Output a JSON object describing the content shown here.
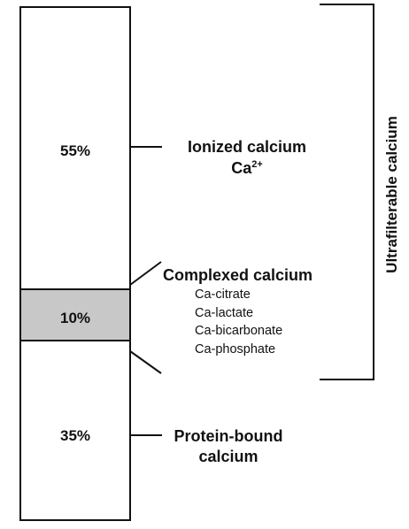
{
  "diagram": {
    "segments": [
      {
        "name": "ionized",
        "percent": 55,
        "label": "55%",
        "fill": "#ffffff"
      },
      {
        "name": "complexed",
        "percent": 10,
        "label": "10%",
        "fill": "#c8c8c8"
      },
      {
        "name": "protein-bound",
        "percent": 35,
        "label": "35%",
        "fill": "#ffffff"
      }
    ],
    "ionized": {
      "title": "Ionized calcium",
      "formula_base": "Ca",
      "formula_charge": "2+"
    },
    "complexed": {
      "title": "Complexed calcium",
      "items": [
        "Ca-citrate",
        "Ca-lactate",
        "Ca-bicarbonate",
        "Ca-phosphate"
      ]
    },
    "protein_bound": {
      "title_line1": "Protein-bound",
      "title_line2": "calcium"
    },
    "bracket_label": "Ultrafilterable calcium"
  }
}
